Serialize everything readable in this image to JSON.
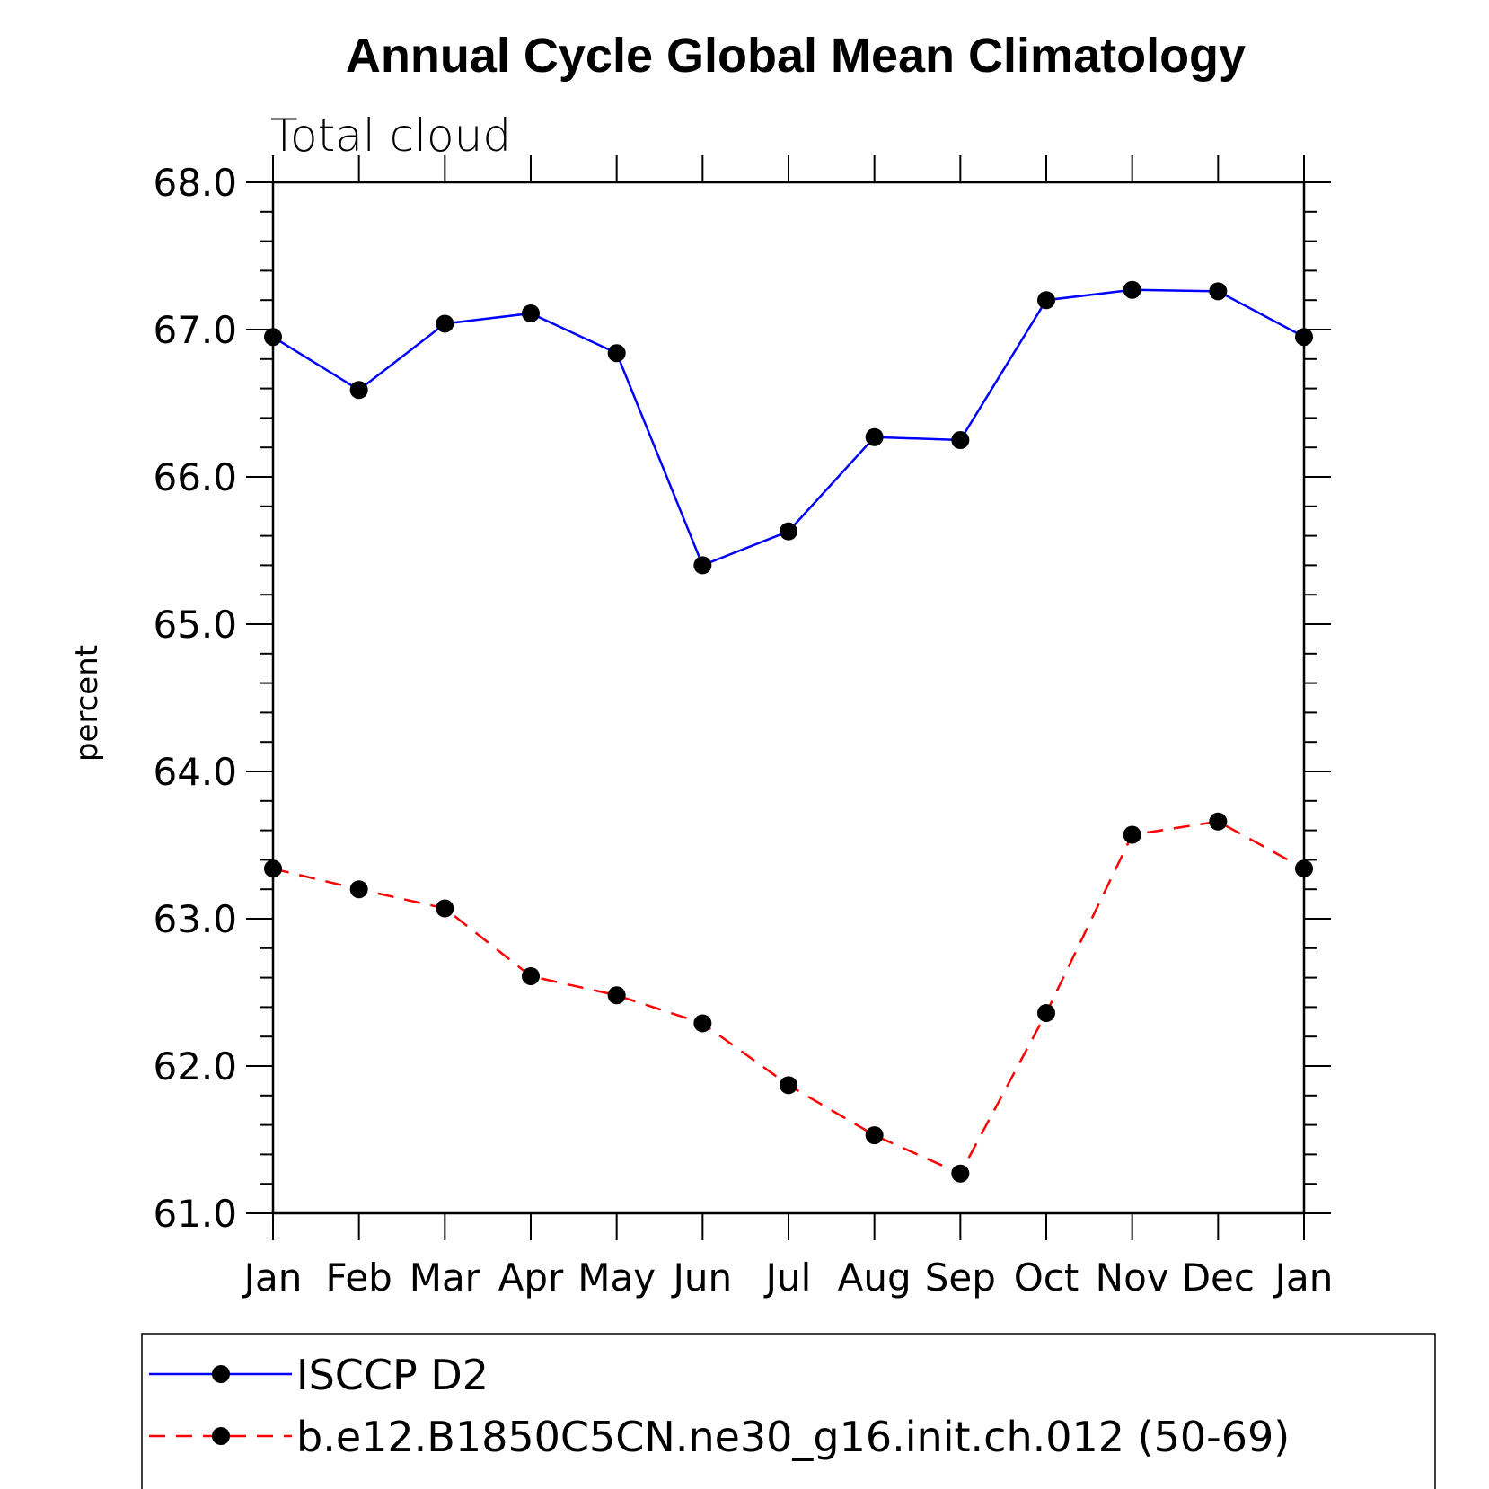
{
  "chart_data": {
    "type": "line",
    "title": "Annual Cycle Global Mean Climatology",
    "subtitle": "Total cloud",
    "ylabel": "percent",
    "xlabel": "",
    "categories": [
      "Jan",
      "Feb",
      "Mar",
      "Apr",
      "May",
      "Jun",
      "Jul",
      "Aug",
      "Sep",
      "Oct",
      "Nov",
      "Dec",
      "Jan"
    ],
    "ylim": [
      61.0,
      68.0
    ],
    "yticks": [
      61.0,
      62.0,
      63.0,
      64.0,
      65.0,
      66.0,
      67.0,
      68.0
    ],
    "ytick_labels": [
      "61.0",
      "62.0",
      "63.0",
      "64.0",
      "65.0",
      "66.0",
      "67.0",
      "68.0"
    ],
    "series": [
      {
        "name": "ISCCP D2",
        "color": "#0000ff",
        "style": "solid",
        "values": [
          66.95,
          66.59,
          67.04,
          67.11,
          66.84,
          65.4,
          65.63,
          66.27,
          66.25,
          67.2,
          67.27,
          67.26,
          66.95
        ]
      },
      {
        "name": "b.e12.B1850C5CN.ne30_g16.init.ch.012 (50-69)",
        "color": "#ff0000",
        "style": "dashed",
        "values": [
          63.34,
          63.2,
          63.07,
          62.61,
          62.48,
          62.29,
          61.87,
          61.53,
          61.27,
          62.36,
          63.57,
          63.66,
          63.34
        ]
      }
    ],
    "legend_position": "bottom"
  }
}
